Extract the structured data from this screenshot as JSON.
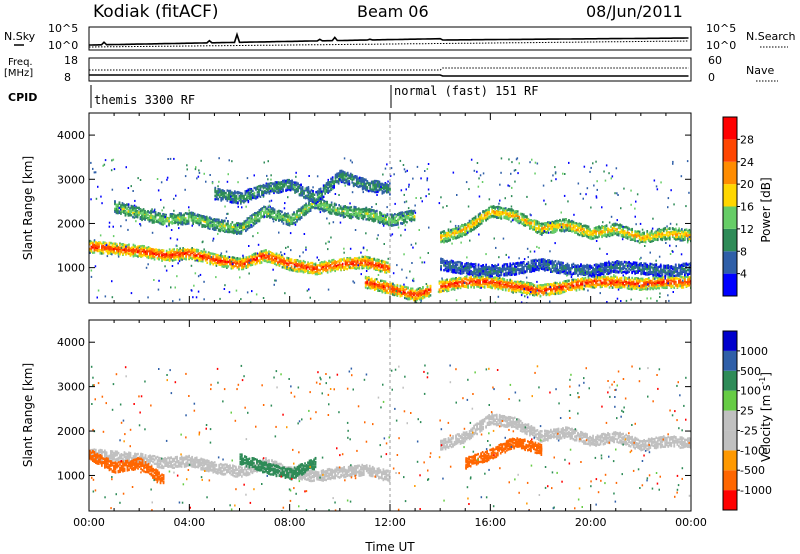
{
  "header": {
    "station": "Kodiak (fitACF)",
    "beam": "Beam 06",
    "date": "08/Jun/2011"
  },
  "noise_panel": {
    "left_label": "N.Sky",
    "right_label": "N.Search",
    "left_ticks": [
      "10^5",
      "10^0"
    ],
    "right_ticks": [
      "10^5",
      "10^0"
    ]
  },
  "freq_panel": {
    "left_label_1": "Freq.",
    "left_label_2": "[MHz]",
    "right_label": "Nave",
    "left_ticks": [
      "18",
      "8"
    ],
    "right_ticks": [
      "60",
      "0"
    ]
  },
  "cpid": {
    "label": "CPID",
    "modes": [
      {
        "text": "themis 3300 RF",
        "start_hour": 0
      },
      {
        "text": "normal (fast) 151 RF",
        "start_hour": 12.0
      }
    ]
  },
  "colors": {
    "power_scale": [
      "#0000ff",
      "#2f5fa8",
      "#2e8b57",
      "#66cd66",
      "#ffd700",
      "#ff8c00",
      "#ff4500",
      "#ff0000"
    ],
    "velocity_scale": [
      "#ff0000",
      "#ff6600",
      "#ff9900",
      "#c0c0c0",
      "#c0c0c0",
      "#66cc44",
      "#2e8b57",
      "#2f5fa8",
      "#0000cc"
    ],
    "ground_scatter": "#c0c0c0"
  },
  "chart_data": [
    {
      "type": "heatmap",
      "quantity": "Power",
      "ylabel": "Slant Range [km]",
      "ylim": [
        200,
        4500
      ],
      "yticks": [
        "1000",
        "2000",
        "3000",
        "4000"
      ],
      "xlim": [
        0,
        24
      ],
      "colorbar": {
        "label": "Power [dB]",
        "range": [
          0,
          32
        ],
        "ticks": [
          "4",
          "8",
          "12",
          "16",
          "20",
          "24",
          "28"
        ]
      },
      "features": [
        {
          "hours": [
            0,
            1,
            2,
            3,
            4,
            5,
            6,
            7,
            8,
            9,
            10,
            11,
            12
          ],
          "range_km": [
            1500,
            1450,
            1400,
            1300,
            1350,
            1200,
            1100,
            1300,
            1100,
            1000,
            1100,
            1150,
            1000
          ],
          "value": 26
        },
        {
          "hours": [
            1,
            2,
            3,
            4,
            5,
            6,
            7,
            8,
            9,
            10,
            11,
            12,
            13
          ],
          "range_km": [
            2400,
            2250,
            2100,
            2150,
            2000,
            1900,
            2300,
            2100,
            2500,
            2300,
            2250,
            2100,
            2200
          ],
          "value": 14
        },
        {
          "hours": [
            5,
            6,
            7,
            8,
            9,
            10,
            11,
            12
          ],
          "range_km": [
            2700,
            2600,
            2800,
            2900,
            2600,
            3100,
            2900,
            2800
          ],
          "value": 10
        },
        {
          "hours": [
            14,
            15,
            16,
            17,
            18,
            19,
            20,
            21,
            22,
            23,
            24
          ],
          "range_km": [
            1700,
            1900,
            2300,
            2200,
            1900,
            2000,
            1800,
            1900,
            1700,
            1800,
            1750
          ],
          "value": 19
        },
        {
          "hours": [
            11,
            12,
            13,
            14,
            15,
            16,
            17,
            18,
            19,
            20,
            21,
            22,
            23,
            24
          ],
          "range_km": [
            700,
            550,
            400,
            600,
            700,
            700,
            600,
            500,
            600,
            700,
            700,
            650,
            700,
            700
          ],
          "value": 26
        },
        {
          "hours": [
            14,
            15,
            16,
            17,
            18,
            19,
            20,
            21,
            22,
            23,
            24
          ],
          "range_km": [
            1100,
            1000,
            950,
            1000,
            1100,
            1000,
            950,
            1050,
            1000,
            950,
            1000
          ],
          "value": 7
        }
      ]
    },
    {
      "type": "heatmap",
      "quantity": "Velocity",
      "ylabel": "Slant Range [km]",
      "xlabel": "Time UT",
      "ylim": [
        200,
        4500
      ],
      "yticks": [
        "1000",
        "2000",
        "3000",
        "4000"
      ],
      "xlim": [
        0,
        24
      ],
      "xticks": [
        "00:00",
        "04:00",
        "08:00",
        "12:00",
        "16:00",
        "20:00",
        "00:00"
      ],
      "colorbar": {
        "label": "Velocity [m s",
        "label_exp": "-1",
        "label_end": "]",
        "ticks": [
          "1000",
          "500",
          "100",
          "25",
          "-25",
          "-100",
          "-500",
          "-1000"
        ]
      },
      "features": [
        {
          "hours": [
            0,
            1,
            2,
            3,
            4,
            5,
            6,
            7,
            8,
            9,
            10,
            11,
            12
          ],
          "range_km": [
            1500,
            1450,
            1400,
            1300,
            1350,
            1200,
            1100,
            1300,
            1100,
            1000,
            1100,
            1150,
            1000
          ],
          "value": 0
        },
        {
          "hours": [
            6,
            7,
            8,
            9
          ],
          "range_km": [
            1400,
            1200,
            1050,
            1300
          ],
          "value": 150
        },
        {
          "hours": [
            0,
            1,
            2,
            3
          ],
          "range_km": [
            1500,
            1200,
            1300,
            900
          ],
          "value": -300
        },
        {
          "hours": [
            14,
            15,
            16,
            17,
            18,
            19,
            20,
            21,
            22,
            23,
            24
          ],
          "range_km": [
            1700,
            1900,
            2300,
            2200,
            1900,
            2000,
            1800,
            1900,
            1700,
            1800,
            1750
          ],
          "value": 0
        },
        {
          "hours": [
            15,
            16,
            17,
            18
          ],
          "range_km": [
            1300,
            1500,
            1800,
            1600
          ],
          "value": -300
        }
      ]
    }
  ]
}
